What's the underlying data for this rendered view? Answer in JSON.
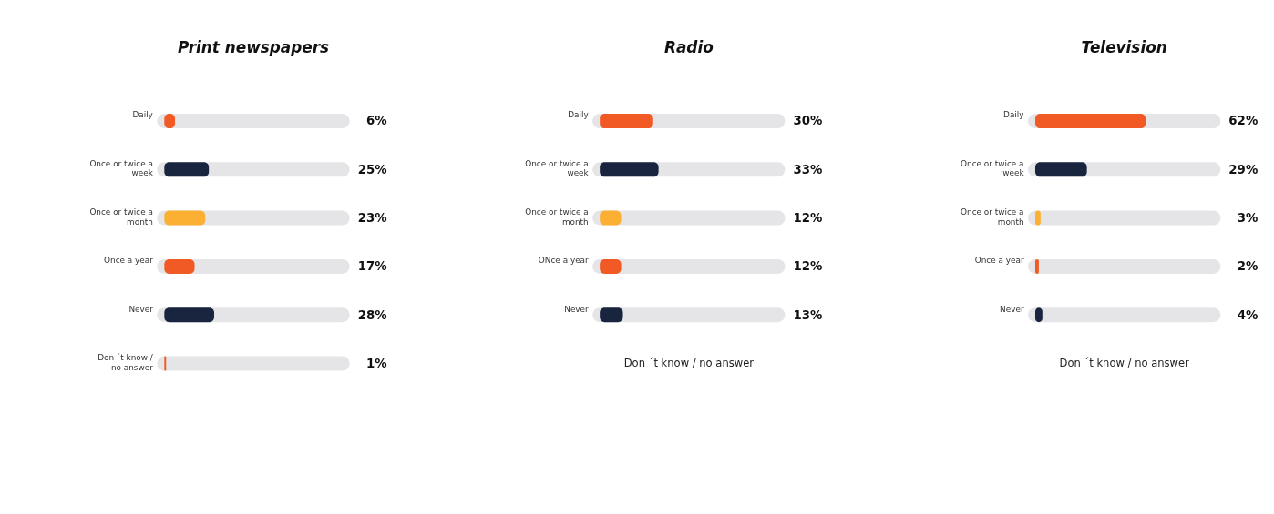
{
  "chart_data": [
    {
      "type": "bar",
      "orientation": "horizontal",
      "title": "Print newspapers",
      "categories": [
        "Daily",
        "Once or twice a  week",
        "Once or twice a month",
        "Once a year",
        "Never",
        "Don ´t know / no answer"
      ],
      "tick_labels": false,
      "grid": "y",
      "series": [
        {
          "values": [
            6,
            25,
            23,
            17,
            28,
            1
          ],
          "value_labels": [
            "6%",
            "25%",
            "23%",
            "17%",
            "28%",
            "1%"
          ],
          "colors": [
            "#f15a24",
            "#19253f",
            "#fbb034",
            "#f15a24",
            "#19253f",
            "#f15a24"
          ]
        }
      ]
    },
    {
      "type": "bar",
      "orientation": "horizontal",
      "title": "Radio",
      "categories": [
        "Daily",
        "Once or twice a  week",
        "Once or twice a month",
        "ONce a year",
        "Never",
        "Don ´t know / no answer"
      ],
      "tick_labels": false,
      "grid": "y",
      "series": [
        {
          "values": [
            30,
            33,
            12,
            12,
            13,
            null
          ],
          "value_labels": [
            "30%",
            "33%",
            "12%",
            "12%",
            "13%",
            null
          ],
          "colors": [
            "#f15a24",
            "#19253f",
            "#fbb034",
            "#f15a24",
            "#19253f",
            "#f15a24"
          ]
        }
      ]
    },
    {
      "type": "bar",
      "orientation": "horizontal",
      "title": "Television",
      "categories": [
        "Daily",
        "Once or twice a  week",
        "Once or twice a month",
        "Once a year",
        "Never",
        "Don ´t know / no answer"
      ],
      "tick_labels": false,
      "grid": "y",
      "series": [
        {
          "values": [
            62,
            29,
            3,
            2,
            4,
            null
          ],
          "value_labels": [
            "62%",
            "29%",
            "3%",
            "2%",
            "4%",
            null
          ],
          "colors": [
            "#f15a24",
            "#19253f",
            "#fbb034",
            "#f15a24",
            "#19253f",
            "#f15a24"
          ]
        }
      ]
    }
  ]
}
